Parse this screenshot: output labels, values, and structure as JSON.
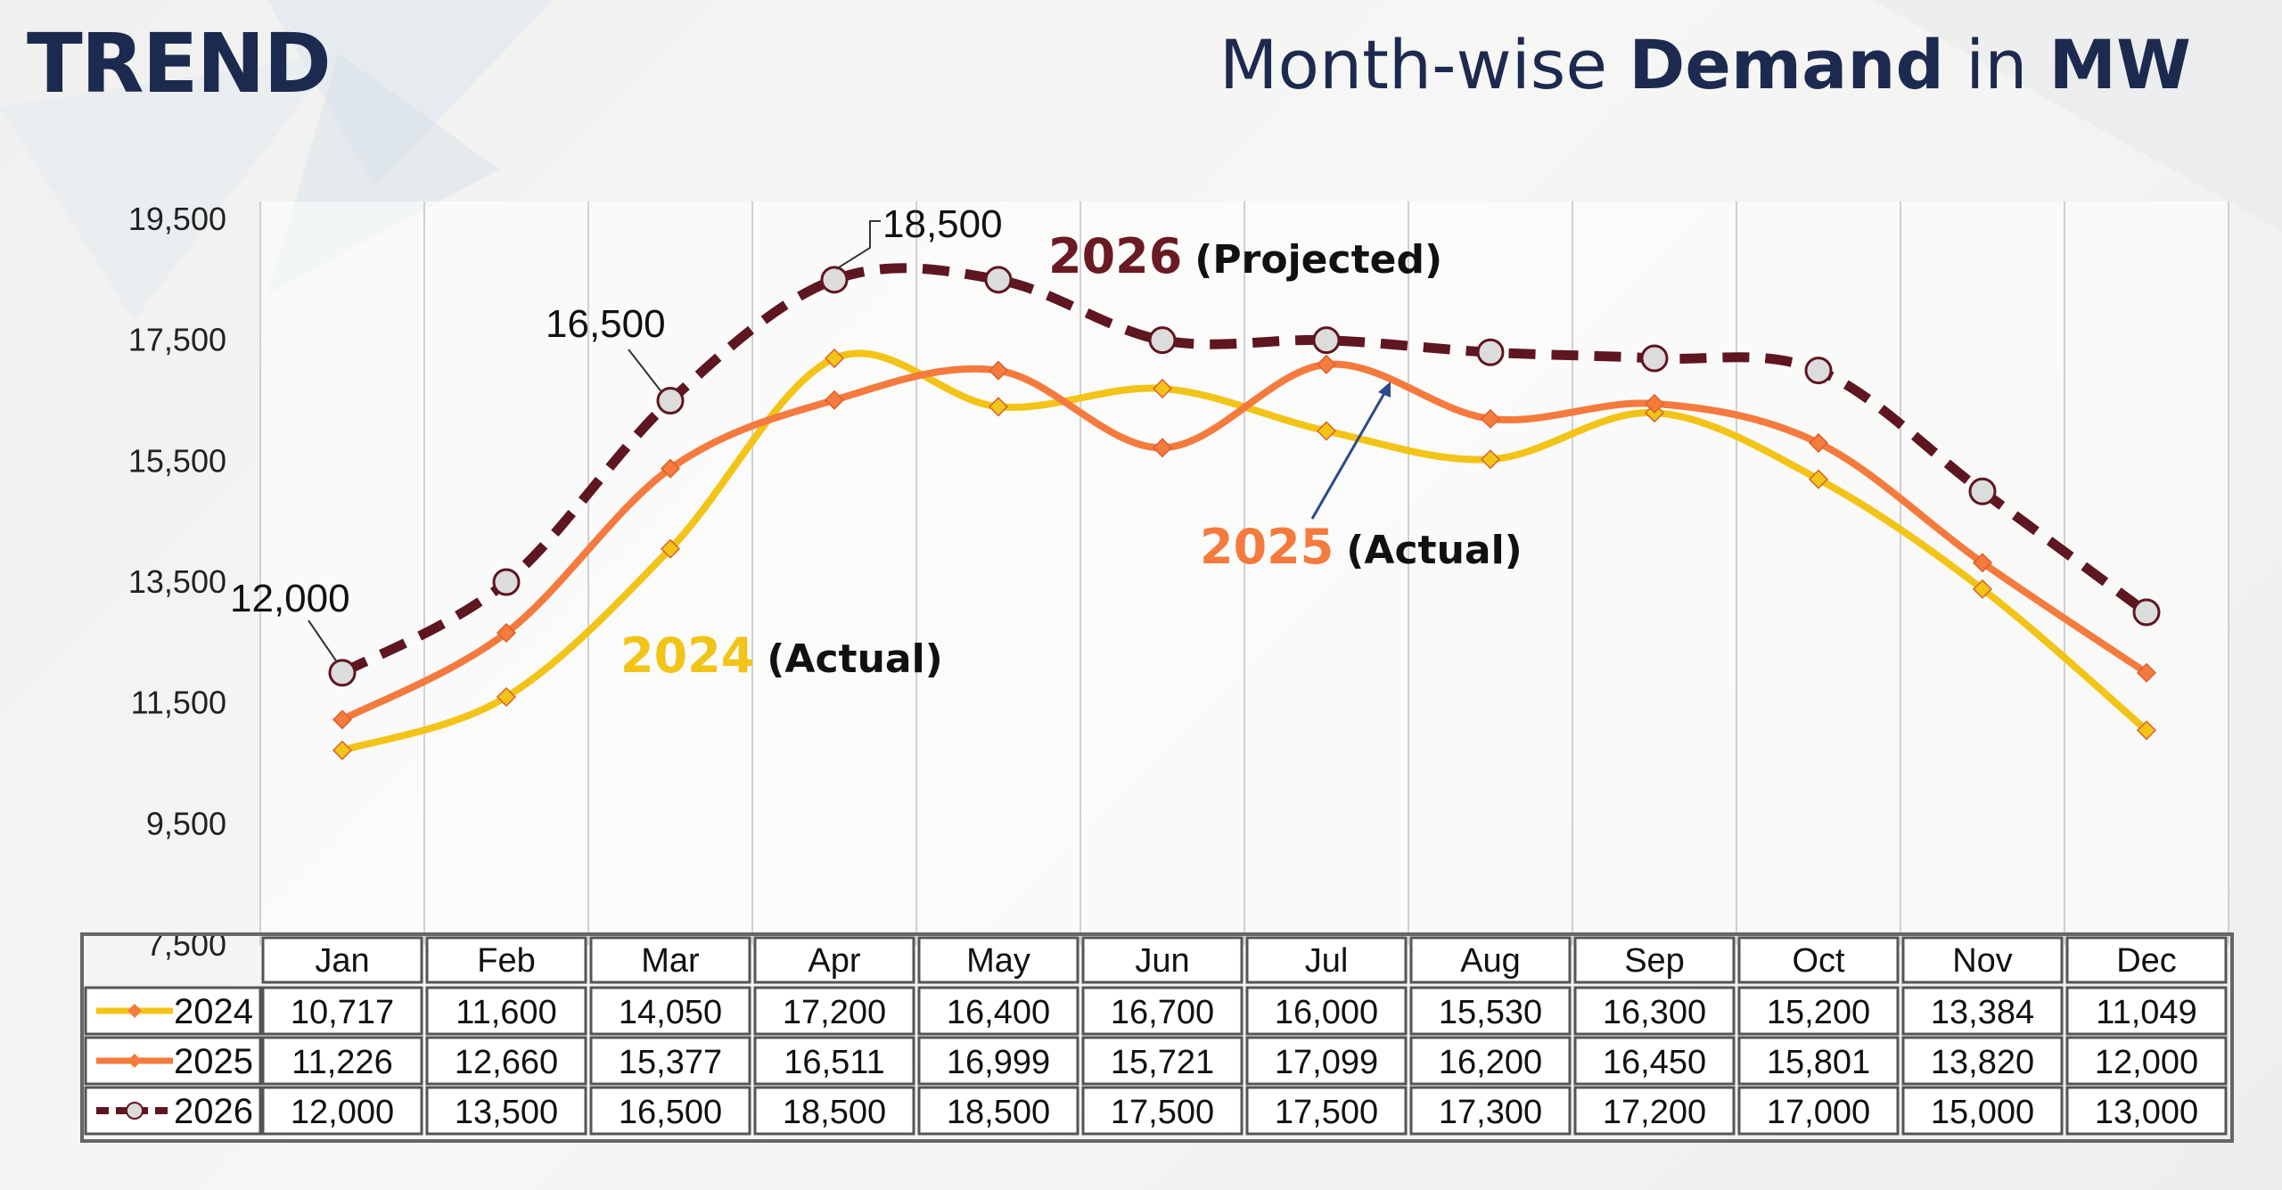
{
  "header": {
    "trend": "TREND",
    "subtitle_pre": "Month-wise ",
    "subtitle_bold1": "Demand",
    "subtitle_mid": " in ",
    "subtitle_bold2": "MW"
  },
  "chart_data": {
    "type": "line",
    "categories": [
      "Jan",
      "Feb",
      "Mar",
      "Apr",
      "May",
      "Jun",
      "Jul",
      "Aug",
      "Sep",
      "Oct",
      "Nov",
      "Dec"
    ],
    "yticks": [
      "19,500",
      "17,500",
      "15,500",
      "13,500",
      "11,500",
      "9,500",
      "7,500"
    ],
    "ytick_values": [
      19500,
      17500,
      15500,
      13500,
      11500,
      9500,
      7500
    ],
    "ylim": [
      7500,
      19500
    ],
    "series": [
      {
        "name": "2024",
        "color": "#f2c417",
        "marker": "diamond",
        "values": [
          10717,
          11600,
          14050,
          17200,
          16400,
          16700,
          16000,
          15530,
          16300,
          15200,
          13384,
          11049
        ],
        "labels": [
          "10,717",
          "11,600",
          "14,050",
          "17,200",
          "16,400",
          "16,700",
          "16,000",
          "15,530",
          "16,300",
          "15,200",
          "13,384",
          "11,049"
        ]
      },
      {
        "name": "2025",
        "color": "#f47a3e",
        "marker": "diamond",
        "values": [
          11226,
          12660,
          15377,
          16511,
          16999,
          15721,
          17099,
          16200,
          16450,
          15801,
          13820,
          12000
        ],
        "labels": [
          "11,226",
          "12,660",
          "15,377",
          "16,511",
          "16,999",
          "15,721",
          "17,099",
          "16,200",
          "16,450",
          "15,801",
          "13,820",
          "12,000"
        ]
      },
      {
        "name": "2026",
        "color": "#5e1620",
        "marker": "circle",
        "dashed": true,
        "values": [
          12000,
          13500,
          16500,
          18500,
          18500,
          17500,
          17500,
          17300,
          17200,
          17000,
          15000,
          13000
        ],
        "labels": [
          "12,000",
          "13,500",
          "16,500",
          "18,500",
          "18,500",
          "17,500",
          "17,500",
          "17,300",
          "17,200",
          "17,000",
          "15,000",
          "13,000"
        ]
      }
    ],
    "annotations": {
      "a2026": {
        "year": "2026",
        "note": "(Projected)"
      },
      "a2025": {
        "year": "2025",
        "note": "(Actual)"
      },
      "a2024": {
        "year": "2024",
        "note": "(Actual)"
      },
      "callouts": [
        "12,000",
        "16,500",
        "18,500"
      ]
    },
    "grid": true
  }
}
